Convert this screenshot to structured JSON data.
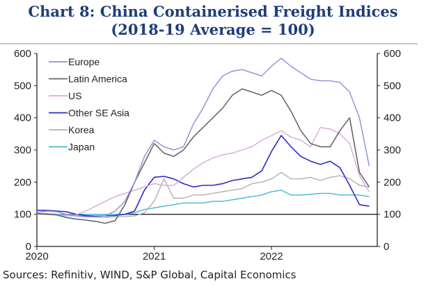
{
  "chart_data": {
    "type": "line",
    "title": "Chart 8: China Containerised Freight Indices",
    "subtitle": "(2018-19 Average = 100)",
    "xlabel": "",
    "ylabel": "",
    "x_ticks": [
      "2020",
      "2021",
      "2022"
    ],
    "y_ticks": [
      0,
      100,
      200,
      300,
      400,
      500,
      600
    ],
    "ylim": [
      0,
      600
    ],
    "xlim": [
      "2020-01",
      "2022-12"
    ],
    "reference_line": 100,
    "legend_position": "top-left",
    "x": [
      "2020-01",
      "2020-02",
      "2020-03",
      "2020-04",
      "2020-05",
      "2020-06",
      "2020-07",
      "2020-08",
      "2020-09",
      "2020-10",
      "2020-11",
      "2020-12",
      "2021-01",
      "2021-02",
      "2021-03",
      "2021-04",
      "2021-05",
      "2021-06",
      "2021-07",
      "2021-08",
      "2021-09",
      "2021-10",
      "2021-11",
      "2021-12",
      "2022-01",
      "2022-02",
      "2022-03",
      "2022-04",
      "2022-05",
      "2022-06",
      "2022-07",
      "2022-08",
      "2022-09",
      "2022-10",
      "2022-11"
    ],
    "series": [
      {
        "name": "Europe",
        "color": "#8c8cdc",
        "values": [
          105,
          110,
          108,
          100,
          95,
          92,
          92,
          95,
          110,
          140,
          200,
          280,
          330,
          310,
          300,
          310,
          380,
          430,
          490,
          530,
          545,
          550,
          540,
          530,
          560,
          585,
          560,
          540,
          520,
          515,
          515,
          510,
          480,
          400,
          250
        ]
      },
      {
        "name": "Latin America",
        "color": "#666666",
        "values": [
          102,
          100,
          98,
          90,
          85,
          82,
          78,
          72,
          80,
          130,
          200,
          260,
          320,
          290,
          280,
          300,
          340,
          370,
          400,
          430,
          470,
          490,
          480,
          470,
          485,
          470,
          420,
          360,
          320,
          310,
          310,
          360,
          400,
          230,
          185
        ]
      },
      {
        "name": "US",
        "color": "#d8a8d8",
        "values": [
          100,
          100,
          98,
          95,
          98,
          110,
          125,
          140,
          155,
          165,
          175,
          185,
          195,
          190,
          190,
          215,
          240,
          260,
          275,
          285,
          290,
          300,
          310,
          330,
          345,
          360,
          340,
          330,
          310,
          370,
          365,
          350,
          320,
          220,
          170
        ]
      },
      {
        "name": "Other SE Asia",
        "color": "#2a2ac8",
        "values": [
          112,
          112,
          110,
          108,
          100,
          96,
          94,
          95,
          96,
          100,
          110,
          175,
          215,
          218,
          210,
          195,
          185,
          190,
          190,
          195,
          205,
          210,
          215,
          235,
          295,
          345,
          310,
          280,
          265,
          255,
          265,
          245,
          190,
          130,
          125
        ]
      },
      {
        "name": "Korea",
        "color": "#b0b0b0",
        "values": [
          100,
          100,
          98,
          96,
          95,
          95,
          92,
          90,
          92,
          93,
          95,
          105,
          140,
          210,
          150,
          150,
          160,
          160,
          165,
          170,
          175,
          180,
          195,
          200,
          210,
          230,
          210,
          210,
          215,
          205,
          215,
          220,
          210,
          190,
          185
        ]
      },
      {
        "name": "Japan",
        "color": "#40b8d8",
        "values": [
          102,
          102,
          100,
          100,
          100,
          100,
          100,
          100,
          100,
          100,
          105,
          115,
          120,
          125,
          130,
          135,
          135,
          135,
          140,
          140,
          145,
          150,
          155,
          160,
          170,
          175,
          160,
          160,
          162,
          165,
          165,
          160,
          160,
          160,
          155
        ]
      }
    ]
  },
  "source": "Sources: Refinitiv, WIND, S&P Global, Capital Economics"
}
